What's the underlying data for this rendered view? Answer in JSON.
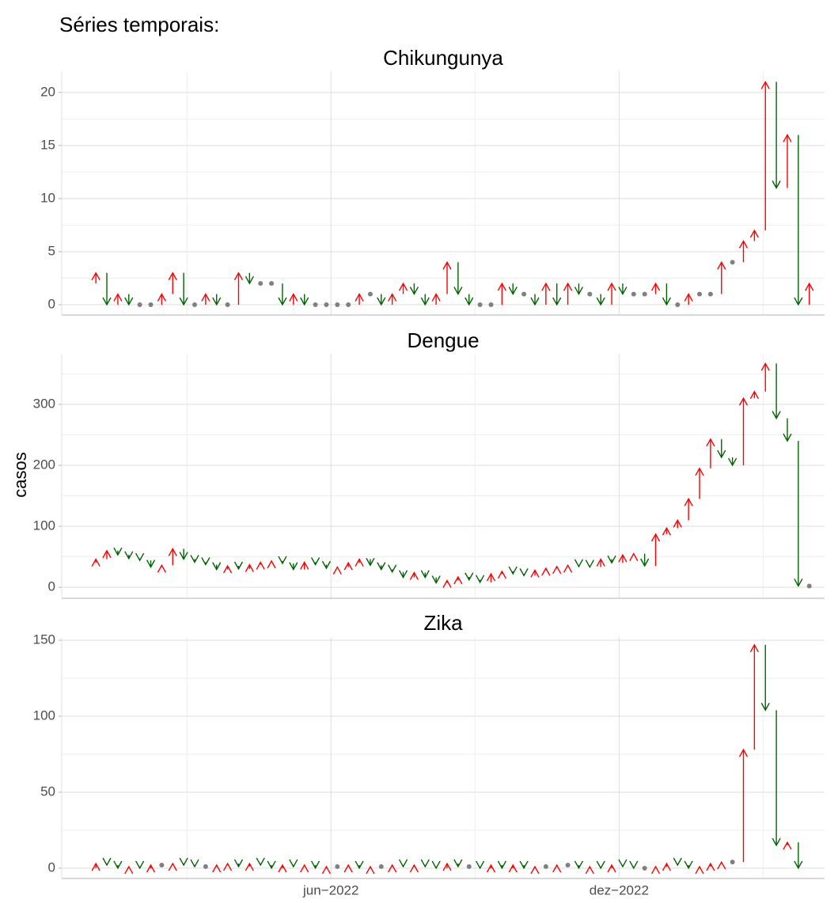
{
  "title": "Séries temporais:",
  "ylabel": "casos",
  "increase_color": "#ff0000",
  "decrease_color": "#006400",
  "equal_color": "#808080",
  "chart_data": [
    {
      "type": "arrow",
      "title": "Chikungunya",
      "categories": [
        null,
        null,
        null,
        null,
        null,
        null,
        null,
        null,
        null,
        null,
        null,
        null,
        null,
        null,
        null,
        null,
        null,
        null,
        null,
        null,
        null,
        null,
        null,
        null,
        null,
        null,
        null,
        null,
        null,
        null,
        null,
        null,
        null,
        null,
        null,
        null,
        null,
        null,
        null,
        null,
        null,
        null,
        null,
        null,
        null,
        null,
        null,
        null,
        null,
        null,
        null,
        null,
        null,
        null,
        null,
        null,
        null,
        null,
        null,
        null,
        null,
        null,
        null,
        null,
        null,
        null,
        null
      ],
      "values": [
        2,
        3,
        0,
        1,
        0,
        0,
        0,
        1,
        3,
        0,
        0,
        1,
        0,
        0,
        3,
        2,
        2,
        2,
        0,
        1,
        0,
        0,
        0,
        0,
        0,
        1,
        1,
        0,
        1,
        2,
        1,
        0,
        1,
        4,
        1,
        0,
        0,
        0,
        2,
        1,
        1,
        0,
        2,
        0,
        2,
        1,
        1,
        0,
        2,
        1,
        1,
        1,
        2,
        0,
        0,
        1,
        1,
        1,
        4,
        4,
        6,
        7,
        21,
        11,
        16,
        0,
        2
      ],
      "ylim": [
        -0.97,
        22.0
      ],
      "yticks": [
        0,
        5,
        10,
        15,
        20
      ]
    },
    {
      "type": "arrow",
      "title": "Dengue",
      "categories": [
        null,
        null,
        null,
        null,
        null,
        null,
        null,
        null,
        null,
        null,
        null,
        null,
        null,
        null,
        null,
        null,
        null,
        null,
        null,
        null,
        null,
        null,
        null,
        null,
        null,
        null,
        null,
        null,
        null,
        null,
        null,
        null,
        null,
        null,
        null,
        null,
        null,
        null,
        null,
        null,
        null,
        null,
        null,
        null,
        null,
        null,
        null,
        null,
        null,
        null,
        null,
        null,
        null,
        null,
        null,
        null,
        null,
        null,
        null,
        null,
        null,
        null,
        null,
        null,
        null,
        null,
        null
      ],
      "values": [
        40,
        46,
        60,
        53,
        47,
        44,
        33,
        36,
        63,
        46,
        41,
        37,
        29,
        35,
        30,
        37,
        41,
        43,
        39,
        29,
        41,
        37,
        31,
        33,
        40,
        46,
        36,
        29,
        25,
        16,
        24,
        16,
        7,
        11,
        17,
        12,
        8,
        22,
        26,
        22,
        19,
        28,
        31,
        34,
        36,
        34,
        33,
        46,
        40,
        53,
        55,
        35,
        87,
        97,
        110,
        145,
        195,
        243,
        213,
        200,
        310,
        321,
        367,
        277,
        240,
        2,
        2
      ],
      "ylim": [
        -18.2,
        383
      ],
      "yticks": [
        0,
        100,
        200,
        300
      ]
    },
    {
      "type": "arrow",
      "title": "Zika",
      "categories": [
        null,
        null,
        null,
        null,
        null,
        null,
        null,
        null,
        null,
        null,
        null,
        null,
        null,
        null,
        null,
        null,
        null,
        null,
        null,
        null,
        null,
        null,
        null,
        null,
        null,
        null,
        null,
        null,
        null,
        null,
        null,
        null,
        null,
        null,
        null,
        null,
        null,
        null,
        null,
        null,
        null,
        null,
        null,
        null,
        null,
        null,
        null,
        null,
        null,
        null,
        null,
        null,
        null,
        null,
        null,
        null,
        null,
        null,
        null,
        null,
        null,
        null,
        null,
        null,
        null,
        null,
        null
      ],
      "values": [
        0,
        3,
        2,
        0,
        1,
        0,
        2,
        2,
        3,
        2,
        1,
        1,
        2,
        3,
        1,
        3,
        2,
        0,
        2,
        1,
        2,
        0,
        1,
        1,
        2,
        0,
        1,
        1,
        2,
        1,
        2,
        1,
        0,
        3,
        1,
        1,
        0,
        2,
        0,
        2,
        0,
        1,
        1,
        2,
        2,
        0,
        1,
        0,
        2,
        1,
        0,
        0,
        1,
        3,
        2,
        0,
        1,
        3,
        4,
        4,
        78,
        147,
        104,
        15,
        17,
        0,
        null
      ],
      "ylim": [
        -6.8,
        152.1
      ],
      "yticks": [
        0,
        50,
        100,
        150
      ],
      "xticks": [
        {
          "value": 22.42,
          "label": "jun−2022"
        },
        {
          "value": 48.67,
          "label": "dez−2022"
        }
      ]
    }
  ]
}
